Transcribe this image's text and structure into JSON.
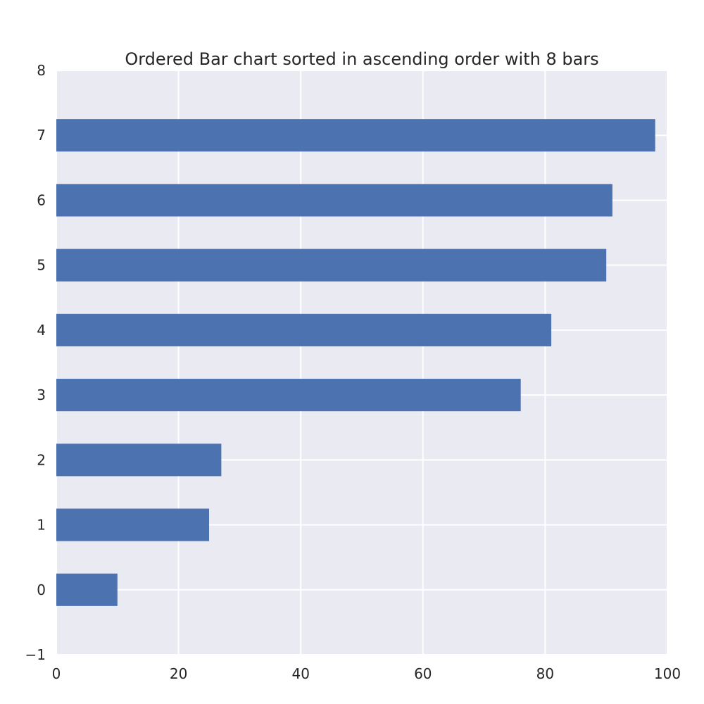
{
  "chart_data": {
    "type": "bar",
    "orientation": "horizontal",
    "title": "Ordered Bar chart sorted in ascending order with 8 bars",
    "xlabel": "",
    "ylabel": "",
    "categories": [
      "0",
      "1",
      "2",
      "3",
      "4",
      "5",
      "6",
      "7"
    ],
    "values": [
      10,
      25,
      27,
      76,
      81,
      90,
      91,
      98
    ],
    "xlim": [
      0,
      100
    ],
    "ylim": [
      -1,
      8
    ],
    "x_ticks": [
      0,
      20,
      40,
      60,
      80,
      100
    ],
    "x_tick_labels": [
      "0",
      "20",
      "40",
      "60",
      "80",
      "100"
    ],
    "y_ticks": [
      -1,
      0,
      1,
      2,
      3,
      4,
      5,
      6,
      7,
      8
    ],
    "y_tick_labels": [
      "−1",
      "0",
      "1",
      "2",
      "3",
      "4",
      "5",
      "6",
      "7",
      "8"
    ],
    "bar_height": 0.5,
    "grid": true,
    "legend": "none",
    "colors": {
      "bar": "#4c72b0",
      "plot_background": "#eaeaf2",
      "grid": "#ffffff",
      "text": "#262626"
    }
  }
}
